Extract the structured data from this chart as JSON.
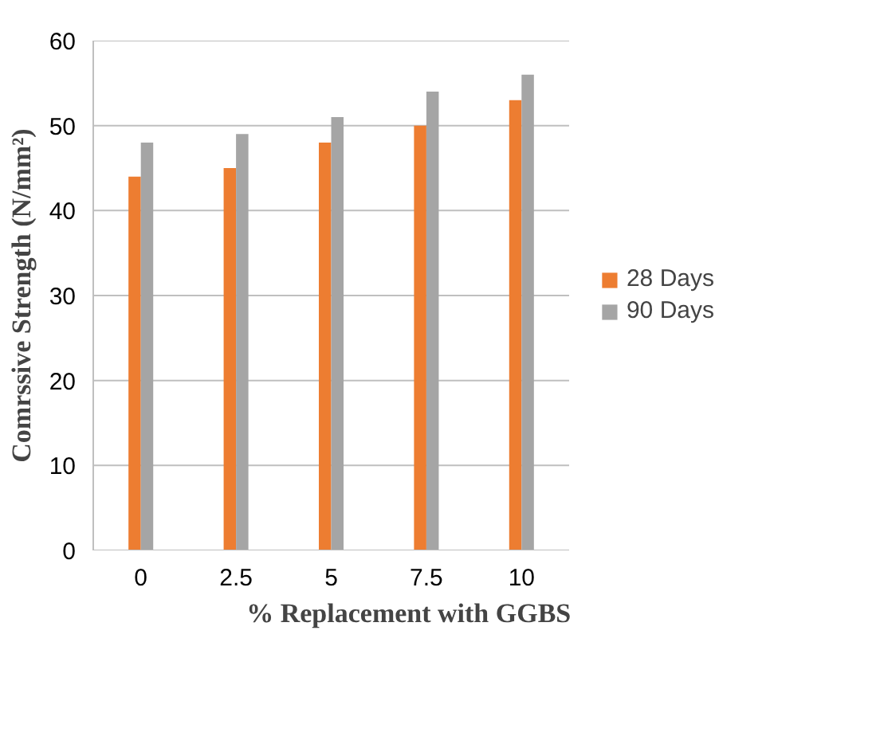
{
  "chart_data": {
    "type": "bar",
    "xlabel": "%  Replacement with GGBS",
    "ylabel": "Comrssive Strength (N/mm²)",
    "categories": [
      "0",
      "2.5",
      "5",
      "7.5",
      "10"
    ],
    "series": [
      {
        "name": "28 Days",
        "color": "#ed7d31",
        "values": [
          44,
          45,
          48,
          50,
          53
        ]
      },
      {
        "name": "90 Days",
        "color": "#a5a5a5",
        "values": [
          48,
          49,
          51,
          54,
          56
        ]
      }
    ],
    "ylim": [
      0,
      60
    ],
    "yticks": [
      0,
      10,
      20,
      30,
      40,
      50,
      60
    ],
    "grid": "y",
    "legend": "right"
  }
}
